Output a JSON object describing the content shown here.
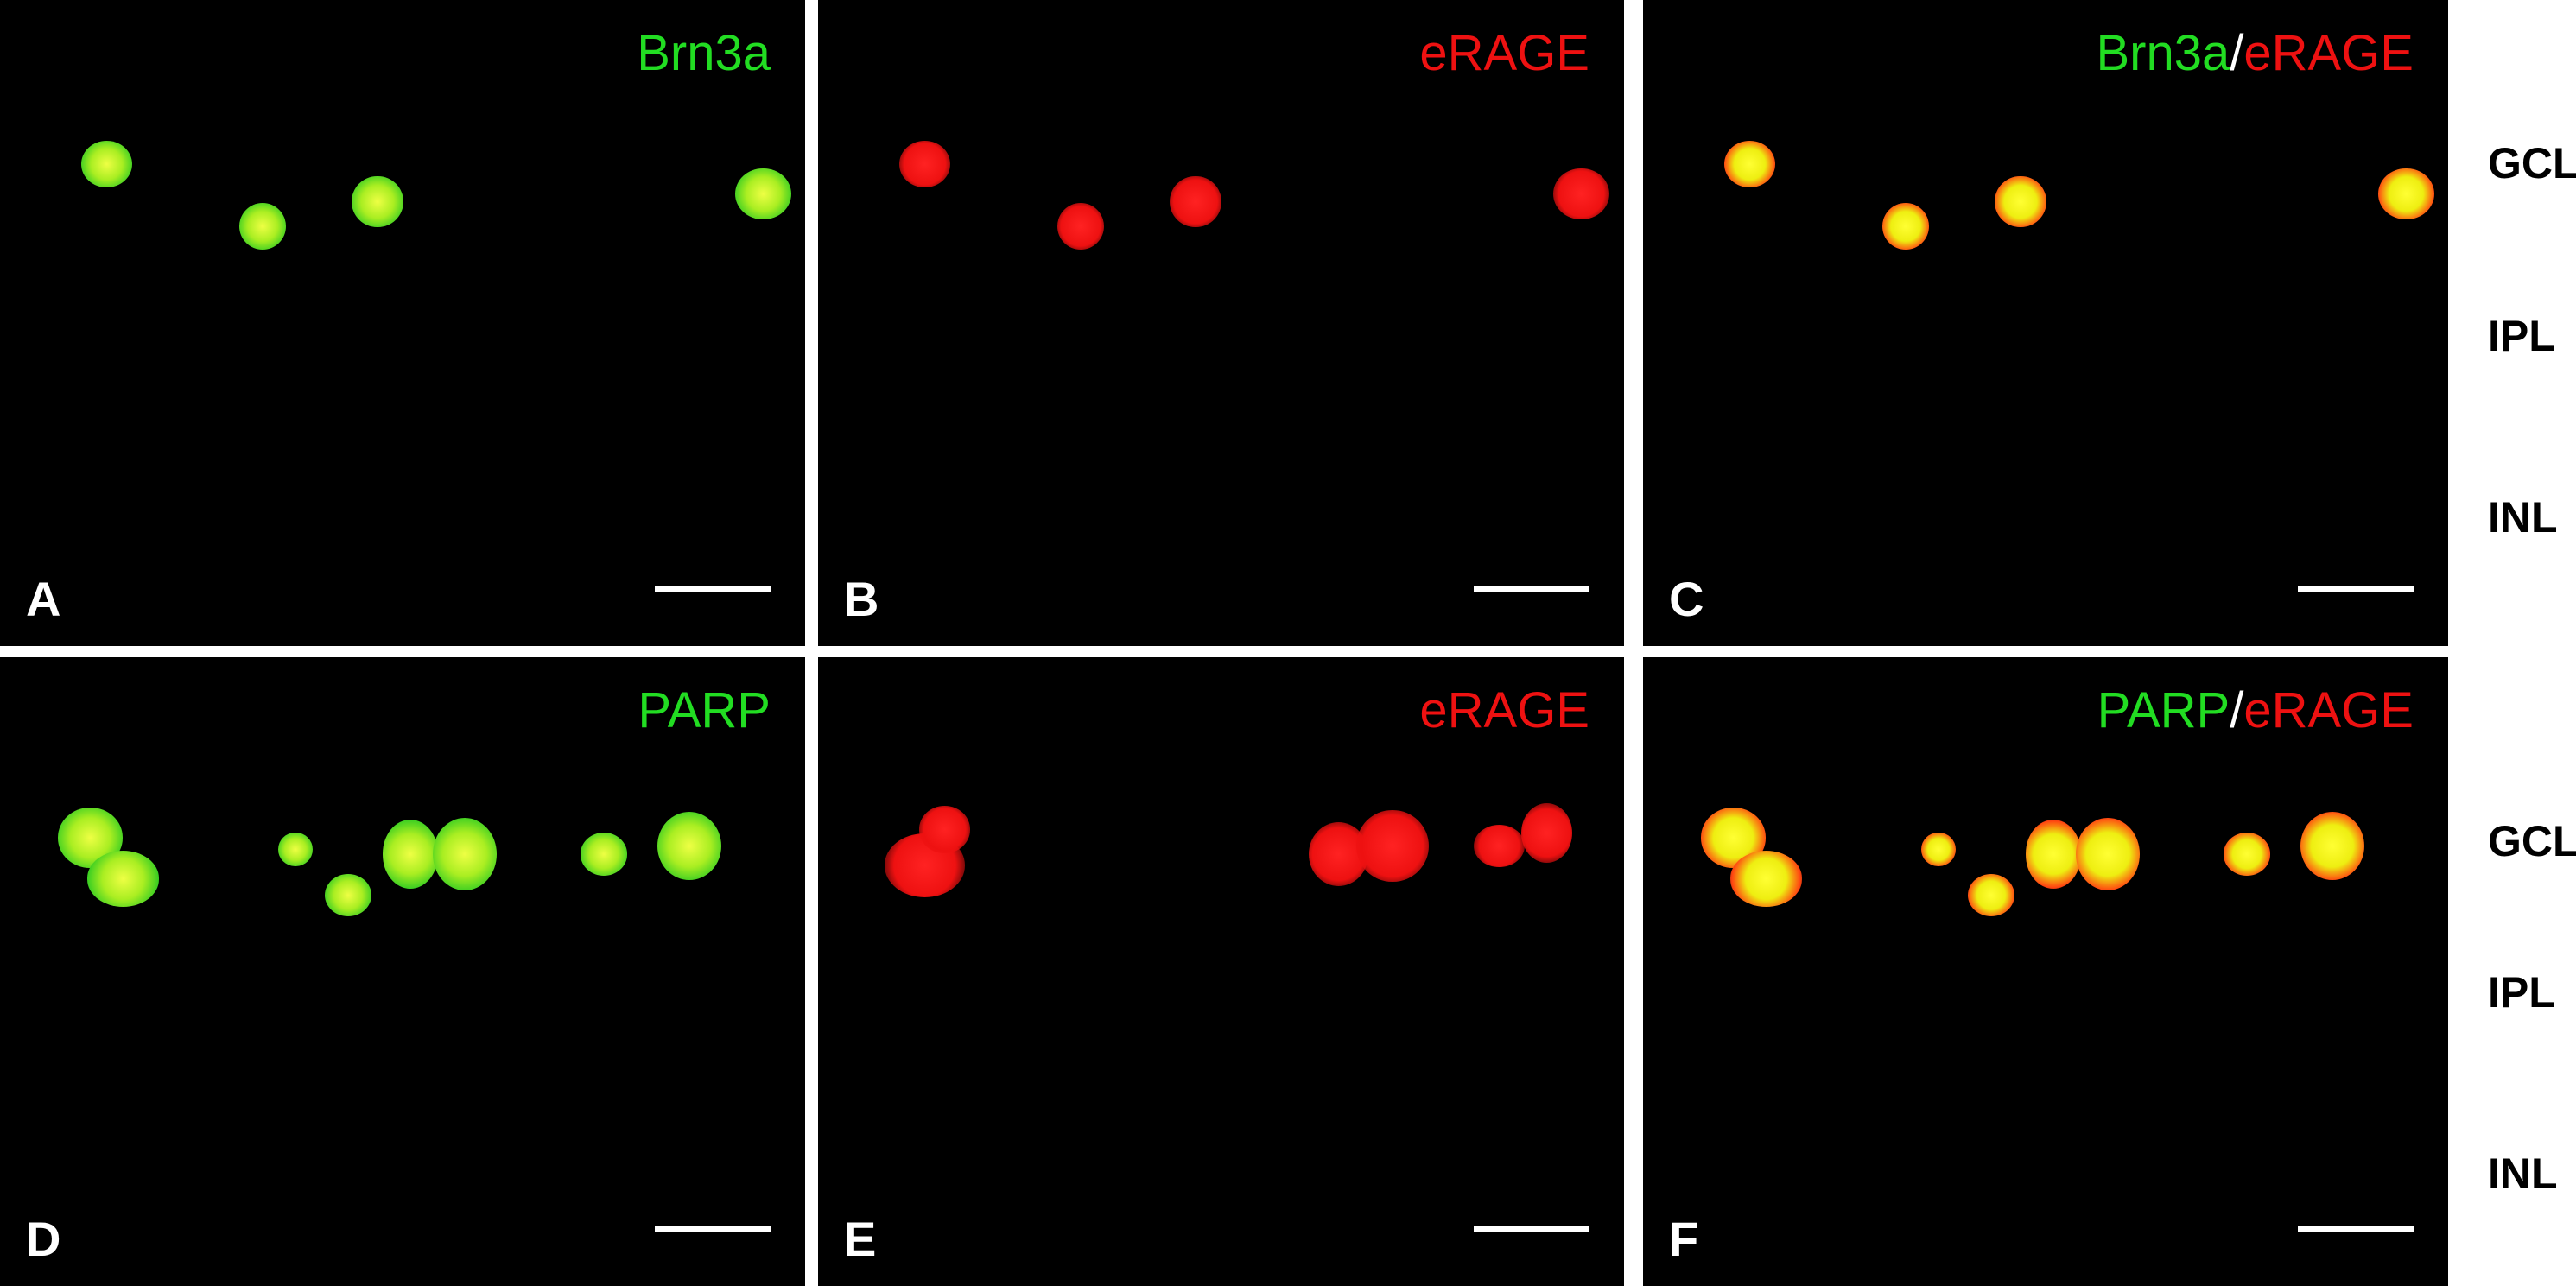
{
  "colors": {
    "green": "#22dd22",
    "red": "#ee1111",
    "white": "#ffffff"
  },
  "panels": [
    {
      "letter": "A",
      "title": [
        {
          "text": "Brn3a",
          "color": "green"
        }
      ]
    },
    {
      "letter": "B",
      "title": [
        {
          "text": "eRAGE",
          "color": "red"
        }
      ]
    },
    {
      "letter": "C",
      "title": [
        {
          "text": "Brn3a",
          "color": "green"
        },
        {
          "text": "/",
          "color": "white"
        },
        {
          "text": "eRAGE",
          "color": "red"
        }
      ]
    },
    {
      "letter": "D",
      "title": [
        {
          "text": "PARP",
          "color": "green"
        }
      ]
    },
    {
      "letter": "E",
      "title": [
        {
          "text": "eRAGE",
          "color": "red"
        }
      ]
    },
    {
      "letter": "F",
      "title": [
        {
          "text": "PARP",
          "color": "green"
        },
        {
          "text": "/",
          "color": "white"
        },
        {
          "text": "eRAGE",
          "color": "red"
        }
      ]
    }
  ],
  "layers": {
    "top": [
      "GCL",
      "IPL",
      "INL"
    ],
    "bottom": [
      "GCL",
      "IPL",
      "INL"
    ]
  }
}
